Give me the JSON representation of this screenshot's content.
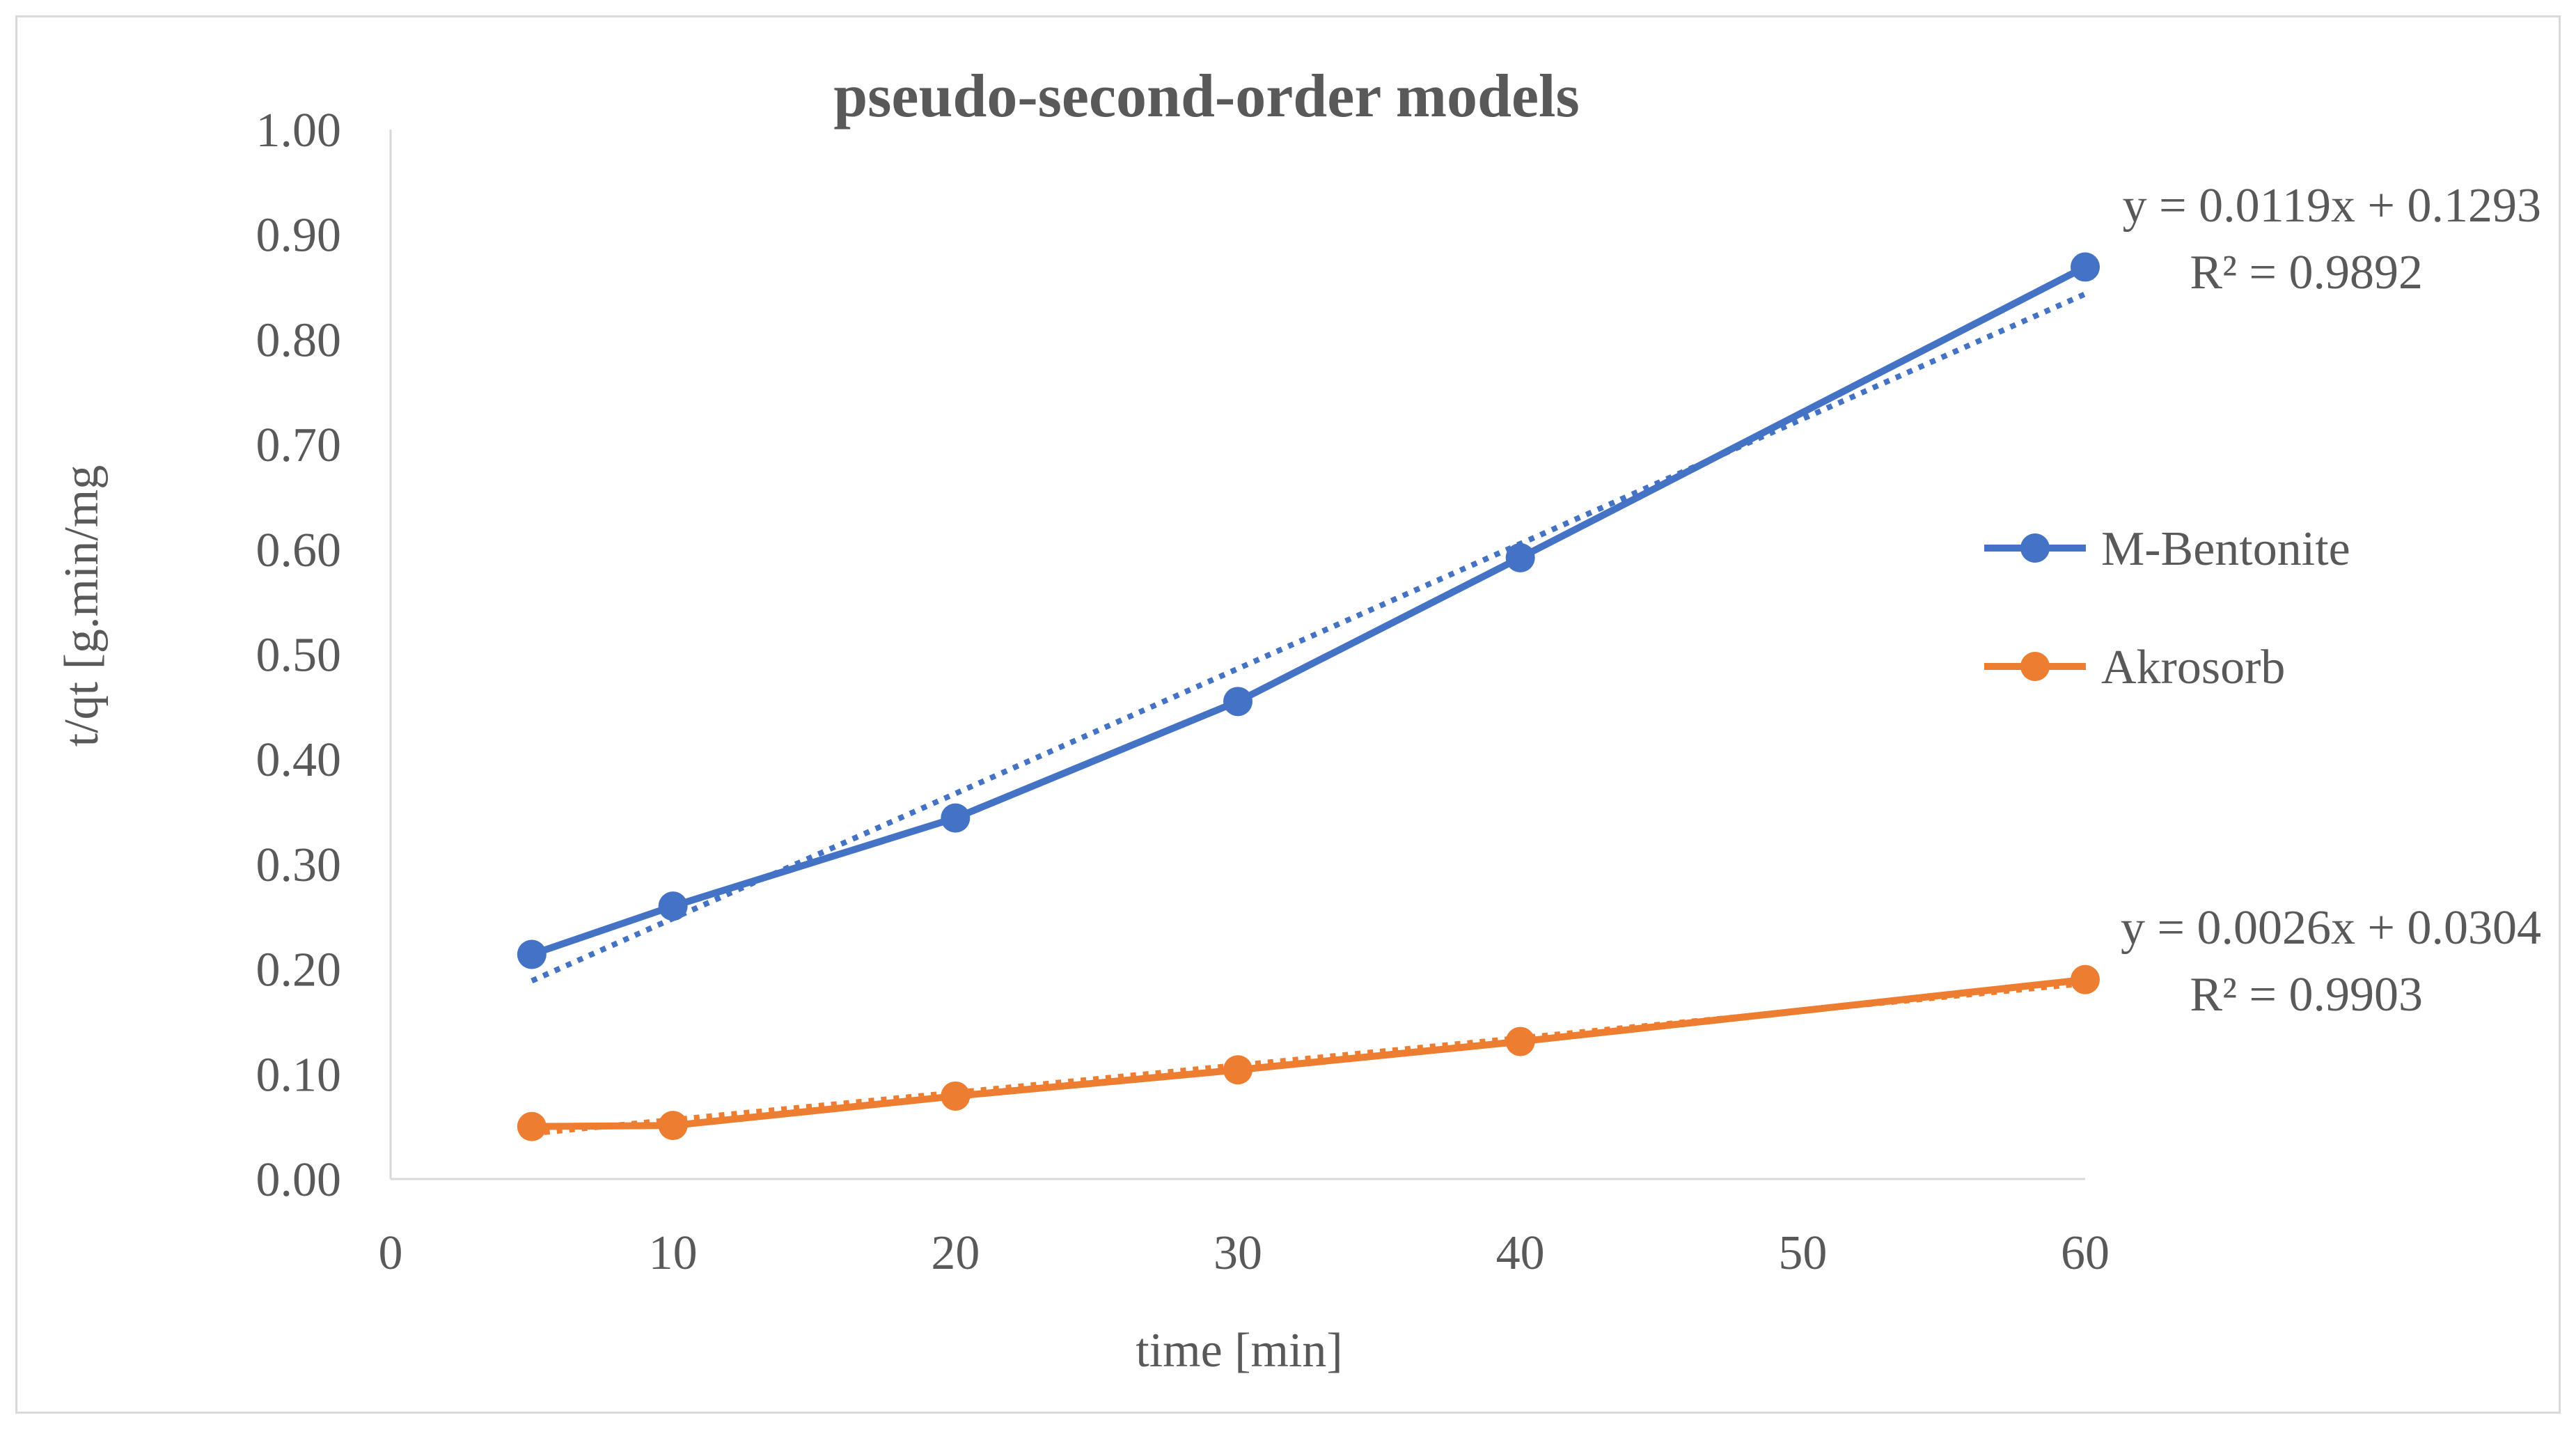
{
  "chart_data": {
    "type": "line",
    "title": "pseudo-second-order models",
    "xlabel": "time [min]",
    "ylabel": "t/qt [g.min/mg",
    "xlim": [
      0,
      60
    ],
    "ylim": [
      0,
      1.0
    ],
    "x_ticks": [
      "0",
      "10",
      "20",
      "30",
      "40",
      "50",
      "60"
    ],
    "y_ticks": [
      "0.00",
      "0.10",
      "0.20",
      "0.30",
      "0.40",
      "0.50",
      "0.60",
      "0.70",
      "0.80",
      "0.90",
      "1.00"
    ],
    "grid": false,
    "legend_position": "right",
    "series": [
      {
        "name": "M-Bentonite",
        "color": "#4472c4",
        "x": [
          5,
          10,
          20,
          30,
          40,
          60
        ],
        "y": [
          0.214,
          0.26,
          0.344,
          0.455,
          0.592,
          0.869
        ],
        "trendline": {
          "slope": 0.0119,
          "intercept": 0.1293,
          "style": "dotted"
        },
        "equation": "y = 0.0119x + 0.1293",
        "r2": "R² = 0.9892"
      },
      {
        "name": "Akrosorb",
        "color": "#ed7d31",
        "x": [
          5,
          10,
          20,
          30,
          40,
          60
        ],
        "y": [
          0.05,
          0.051,
          0.079,
          0.104,
          0.131,
          0.19
        ],
        "trendline": {
          "slope": 0.0026,
          "intercept": 0.0304,
          "style": "dotted"
        },
        "equation": "y = 0.0026x + 0.0304",
        "r2": "R² = 0.9903"
      }
    ]
  }
}
